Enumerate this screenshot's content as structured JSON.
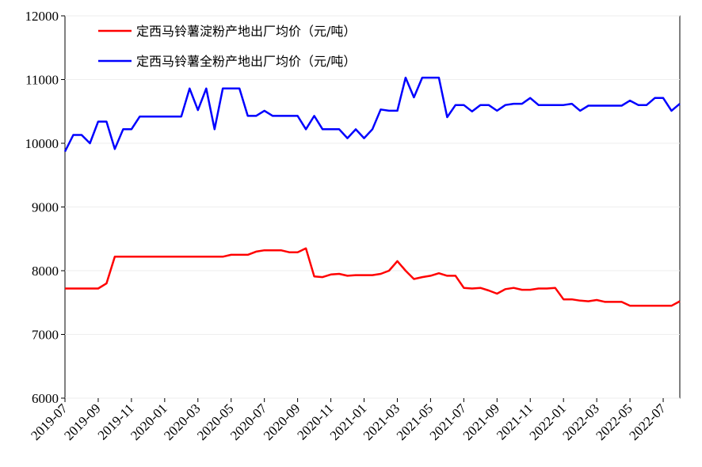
{
  "chart_data": {
    "type": "line",
    "x": [
      "2019-07",
      "2019-07",
      "2019-08",
      "2019-08",
      "2019-09",
      "2019-09",
      "2019-10",
      "2019-10",
      "2019-11",
      "2019-11",
      "2019-12",
      "2019-12",
      "2020-01",
      "2020-01",
      "2020-02",
      "2020-02",
      "2020-03",
      "2020-03",
      "2020-04",
      "2020-04",
      "2020-05",
      "2020-05",
      "2020-06",
      "2020-06",
      "2020-07",
      "2020-07",
      "2020-08",
      "2020-08",
      "2020-09",
      "2020-09",
      "2020-10",
      "2020-10",
      "2020-11",
      "2020-11",
      "2020-12",
      "2020-12",
      "2021-01",
      "2021-01",
      "2021-02",
      "2021-02",
      "2021-03",
      "2021-03",
      "2021-04",
      "2021-04",
      "2021-05",
      "2021-05",
      "2021-06",
      "2021-06",
      "2021-07",
      "2021-07",
      "2021-08",
      "2021-08",
      "2021-09",
      "2021-09",
      "2021-10",
      "2021-10",
      "2021-11",
      "2021-11",
      "2021-12",
      "2021-12",
      "2022-01",
      "2022-01",
      "2022-02",
      "2022-02",
      "2022-03",
      "2022-03",
      "2022-04",
      "2022-04",
      "2022-05",
      "2022-05",
      "2022-06",
      "2022-06",
      "2022-07",
      "2022-07",
      "2022-08"
    ],
    "series": [
      {
        "name": "定西马铃薯淀粉产地出厂均价（元/吨）",
        "color": "#ff0000",
        "values": [
          7720,
          7720,
          7720,
          7720,
          7720,
          7800,
          8220,
          8220,
          8220,
          8220,
          8220,
          8220,
          8220,
          8220,
          8220,
          8220,
          8220,
          8220,
          8220,
          8220,
          8250,
          8250,
          8250,
          8300,
          8320,
          8320,
          8320,
          8290,
          8290,
          8350,
          7910,
          7900,
          7940,
          7950,
          7920,
          7930,
          7930,
          7930,
          7950,
          8000,
          8150,
          8000,
          7870,
          7900,
          7920,
          7960,
          7920,
          7920,
          7730,
          7720,
          7730,
          7690,
          7640,
          7710,
          7730,
          7700,
          7700,
          7720,
          7720,
          7730,
          7550,
          7550,
          7530,
          7520,
          7540,
          7510,
          7510,
          7510,
          7450,
          7450,
          7450,
          7450,
          7450,
          7450,
          7520
        ]
      },
      {
        "name": "定西马铃薯全粉产地出厂均价（元/吨）",
        "color": "#0000ff",
        "values": [
          9870,
          10130,
          10130,
          10000,
          10340,
          10340,
          9910,
          10220,
          10220,
          10420,
          10420,
          10420,
          10420,
          10420,
          10420,
          10860,
          10520,
          10860,
          10220,
          10860,
          10860,
          10860,
          10430,
          10430,
          10510,
          10430,
          10430,
          10430,
          10430,
          10220,
          10430,
          10220,
          10220,
          10220,
          10080,
          10220,
          10080,
          10220,
          10530,
          10510,
          10510,
          11030,
          10720,
          11030,
          11030,
          11030,
          10410,
          10600,
          10600,
          10500,
          10600,
          10600,
          10510,
          10600,
          10620,
          10620,
          10710,
          10600,
          10600,
          10600,
          10600,
          10620,
          10510,
          10590,
          10590,
          10590,
          10590,
          10590,
          10670,
          10600,
          10600,
          10710,
          10710,
          10510,
          10620
        ]
      }
    ],
    "xticks": [
      "2019-07",
      "2019-09",
      "2019-11",
      "2020-01",
      "2020-03",
      "2020-05",
      "2020-07",
      "2020-09",
      "2020-11",
      "2021-01",
      "2021-03",
      "2021-05",
      "2021-07",
      "2021-09",
      "2021-11",
      "2022-01",
      "2022-03",
      "2022-05",
      "2022-07"
    ],
    "ylim": [
      6000,
      12000
    ],
    "yticks": [
      6000,
      7000,
      8000,
      9000,
      10000,
      11000,
      12000
    ],
    "grid": true
  }
}
